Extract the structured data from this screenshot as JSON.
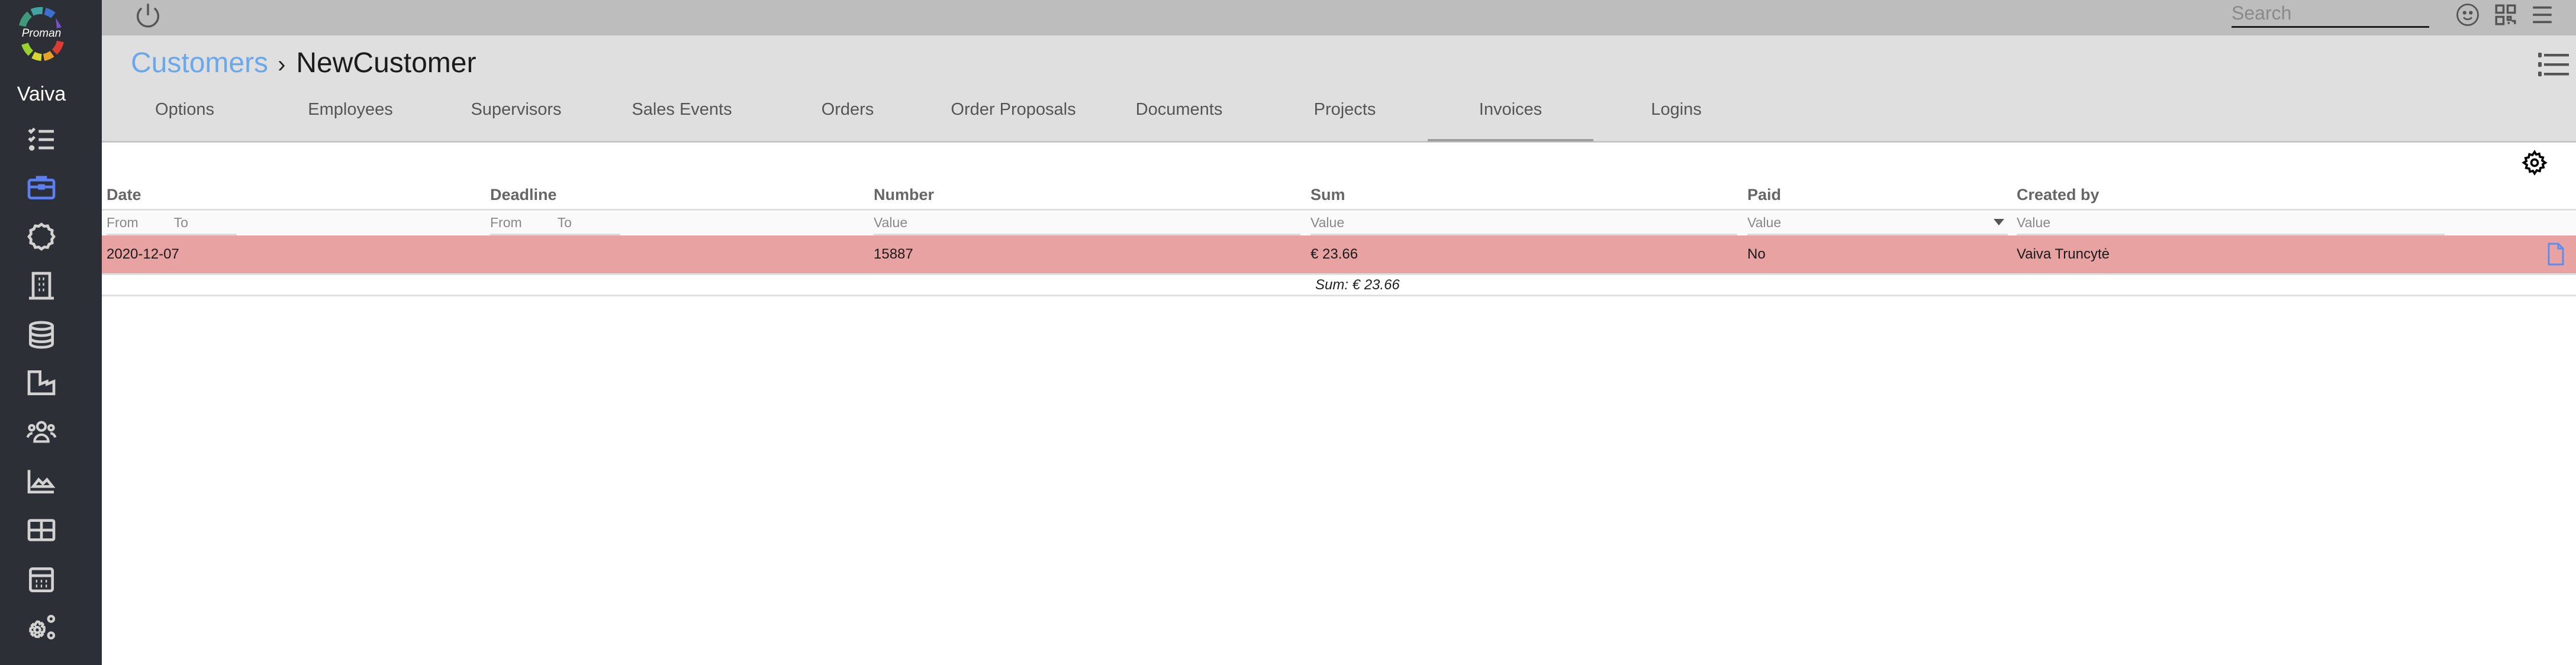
{
  "app": {
    "logo_text": "Proman",
    "user": "Vaiva"
  },
  "sidebar": {
    "items": [
      {
        "icon": "checklist-icon",
        "active": false
      },
      {
        "icon": "briefcase-icon",
        "active": true
      },
      {
        "icon": "badge-icon",
        "active": false
      },
      {
        "icon": "building-icon",
        "active": false
      },
      {
        "icon": "database-icon",
        "active": false
      },
      {
        "icon": "factory-icon",
        "active": false
      },
      {
        "icon": "users-icon",
        "active": false
      },
      {
        "icon": "area-chart-icon",
        "active": false
      },
      {
        "icon": "table-icon",
        "active": false
      },
      {
        "icon": "calculator-icon",
        "active": false
      },
      {
        "icon": "settings-gears-icon",
        "active": false
      }
    ],
    "active_color": "#5b7ef0"
  },
  "topbar": {
    "search_placeholder": "Search",
    "search_value": ""
  },
  "header": {
    "breadcrumb": {
      "parent": "Customers",
      "separator": "›",
      "current": "NewCustomer"
    },
    "tabs": [
      "Options",
      "Employees",
      "Supervisors",
      "Sales Events",
      "Orders",
      "Order Proposals",
      "Documents",
      "Projects",
      "Invoices",
      "Logins"
    ],
    "active_tab": "Invoices"
  },
  "table": {
    "columns": [
      {
        "label": "Date",
        "filter": [
          "From",
          "To"
        ]
      },
      {
        "label": "Deadline",
        "filter": [
          "From",
          "To"
        ]
      },
      {
        "label": "Number",
        "filter": [
          "Value"
        ]
      },
      {
        "label": "Sum",
        "filter": [
          "Value"
        ]
      },
      {
        "label": "Paid",
        "filter": [
          "Value"
        ]
      },
      {
        "label": "Created by",
        "filter": [
          "Value"
        ]
      }
    ],
    "rows": [
      {
        "date": "2020-12-07",
        "deadline": "",
        "number": "15887",
        "sum": "€ 23.66",
        "paid": "No",
        "created_by": "Vaiva Truncytė",
        "highlight_color": "#e8a2a2"
      }
    ],
    "footer_sum": "Sum: € 23.66"
  }
}
